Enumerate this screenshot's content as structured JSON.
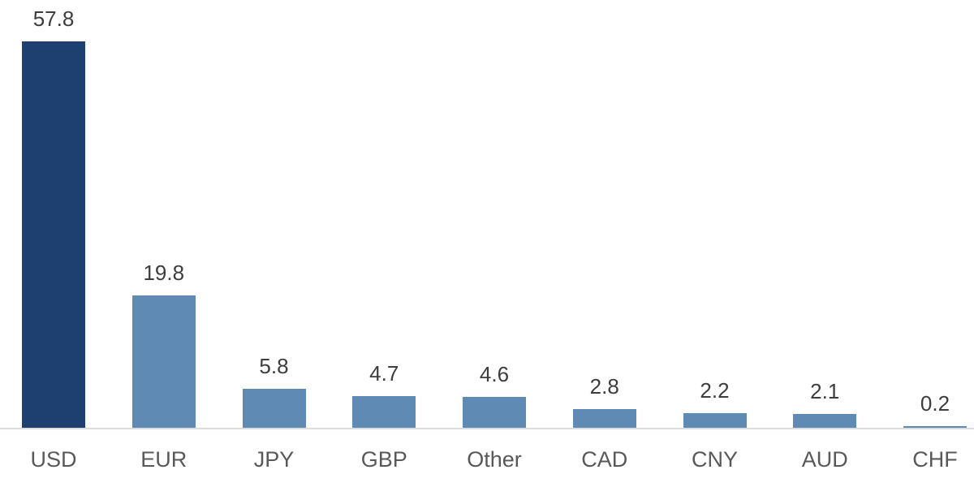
{
  "chart_data": {
    "type": "bar",
    "categories": [
      "USD",
      "EUR",
      "JPY",
      "GBP",
      "Other",
      "CAD",
      "CNY",
      "AUD",
      "CHF"
    ],
    "values": [
      57.8,
      19.8,
      5.8,
      4.7,
      4.6,
      2.8,
      2.2,
      2.1,
      0.2
    ],
    "value_labels": [
      "57.8",
      "19.8",
      "5.8",
      "4.7",
      "4.6",
      "2.8",
      "2.2",
      "2.1",
      "0.2"
    ],
    "title": "",
    "xlabel": "",
    "ylabel": "",
    "ylim": [
      0,
      60
    ],
    "grid": false,
    "legend": false,
    "highlight_index": 0,
    "colors": {
      "highlight_bar": "#1e4070",
      "default_bar": "#5f8ab4",
      "value_label": "#3d3d3d",
      "category_label": "#595959",
      "baseline": "#dcdcdc",
      "background": "#ffffff"
    }
  }
}
